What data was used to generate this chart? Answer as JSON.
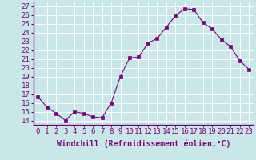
{
  "x": [
    0,
    1,
    2,
    3,
    4,
    5,
    6,
    7,
    8,
    9,
    10,
    11,
    12,
    13,
    14,
    15,
    16,
    17,
    18,
    19,
    20,
    21,
    22,
    23
  ],
  "y": [
    16.7,
    15.5,
    14.8,
    14.0,
    15.0,
    14.8,
    14.4,
    14.3,
    16.0,
    19.0,
    21.1,
    21.2,
    22.8,
    23.3,
    24.6,
    25.9,
    26.7,
    26.6,
    25.1,
    24.4,
    23.2,
    22.4,
    20.8,
    19.8
  ],
  "line_color": "#800080",
  "marker": "s",
  "marker_size": 2.5,
  "bg_color": "#c8e8e8",
  "grid_color": "#ffffff",
  "xlabel": "Windchill (Refroidissement éolien,°C)",
  "ylabel_ticks": [
    14,
    15,
    16,
    17,
    18,
    19,
    20,
    21,
    22,
    23,
    24,
    25,
    26,
    27
  ],
  "ylim": [
    13.5,
    27.5
  ],
  "xlim": [
    -0.5,
    23.5
  ],
  "xlabel_fontsize": 7,
  "tick_fontsize": 6.5,
  "spine_color": "#800080",
  "axis_bg": "#c8e8e8"
}
